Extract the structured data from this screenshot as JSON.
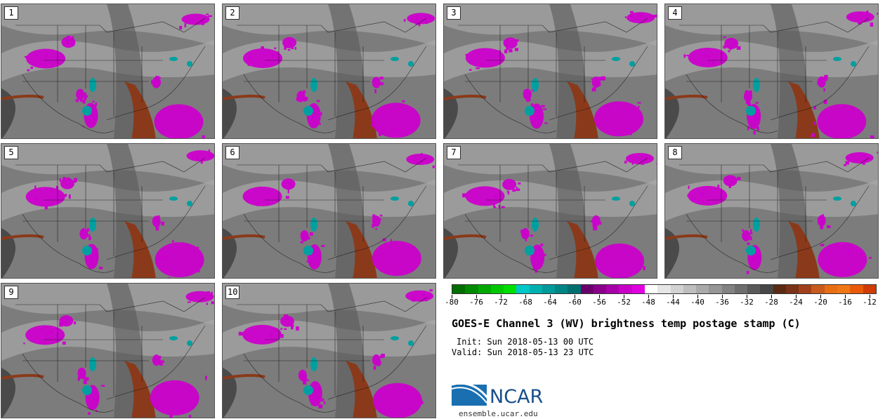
{
  "panels": [
    {
      "label": "1"
    },
    {
      "label": "2"
    },
    {
      "label": "3"
    },
    {
      "label": "4"
    },
    {
      "label": "5"
    },
    {
      "label": "6"
    },
    {
      "label": "7"
    },
    {
      "label": "8"
    },
    {
      "label": "9"
    },
    {
      "label": "10"
    }
  ],
  "colorbar": {
    "ticks": [
      "-80",
      "-76",
      "-72",
      "-68",
      "-64",
      "-60",
      "-56",
      "-52",
      "-48",
      "-44",
      "-40",
      "-36",
      "-32",
      "-28",
      "-24",
      "-20",
      "-16",
      "-12"
    ],
    "colors": [
      "#006d00",
      "#008a00",
      "#00a800",
      "#00c800",
      "#00e000",
      "#00c8c8",
      "#00b0b0",
      "#009a9a",
      "#008585",
      "#007070",
      "#6a006a",
      "#8a008a",
      "#a800a8",
      "#c800c8",
      "#e000e0",
      "#ffffff",
      "#e6e6e6",
      "#d2d2d2",
      "#bebebe",
      "#aaaaaa",
      "#969696",
      "#828282",
      "#6e6e6e",
      "#5a5a5a",
      "#464646",
      "#5a2a14",
      "#7a3218",
      "#a0401a",
      "#c85a1e",
      "#e86e14",
      "#f07814",
      "#e85a0a",
      "#d03c06"
    ]
  },
  "title": "GOES-E Channel 3 (WV) brightness temp postage stamp (C)",
  "init": "Init: Sun 2018-05-13 00 UTC",
  "valid": "Valid: Sun 2018-05-13 23 UTC",
  "logo_text": "NCAR",
  "site": "ensemble.ucar.edu",
  "colors": {
    "magenta": "#cc00cc",
    "cyan": "#00a0a0",
    "brown": "#8a3a1a",
    "gray": "#7a7a7a"
  }
}
